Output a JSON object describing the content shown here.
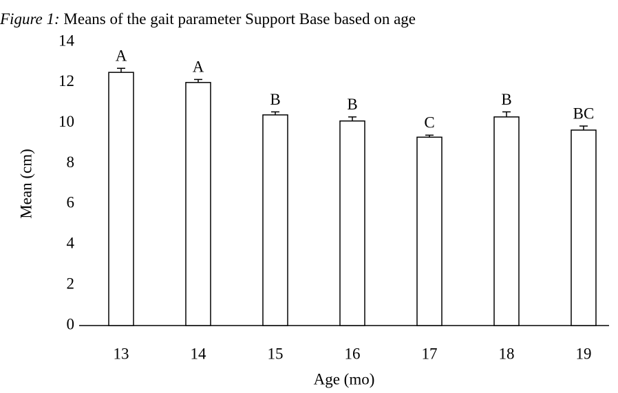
{
  "chart_data": {
    "type": "bar",
    "title_parts": [
      "Figure 1:",
      "Means of the gait parameter Support Base based on age"
    ],
    "x_label": "Age (mo)",
    "y_label": "Mean (cm)",
    "categories": [
      "13",
      "14",
      "15",
      "16",
      "17",
      "18",
      "19"
    ],
    "values": [
      12.5,
      12.0,
      10.4,
      10.1,
      9.3,
      10.3,
      9.65
    ],
    "errors": [
      0.2,
      0.15,
      0.15,
      0.2,
      0.1,
      0.25,
      0.2
    ],
    "annotations": [
      "A",
      "A",
      "B",
      "B",
      "C",
      "B",
      "BC"
    ],
    "color": "#ffffff",
    "edge_color": "#000000",
    "ylim": [
      0,
      14
    ],
    "yticks": [
      0,
      2,
      4,
      6,
      8,
      10,
      12,
      14
    ],
    "grid": false
  }
}
